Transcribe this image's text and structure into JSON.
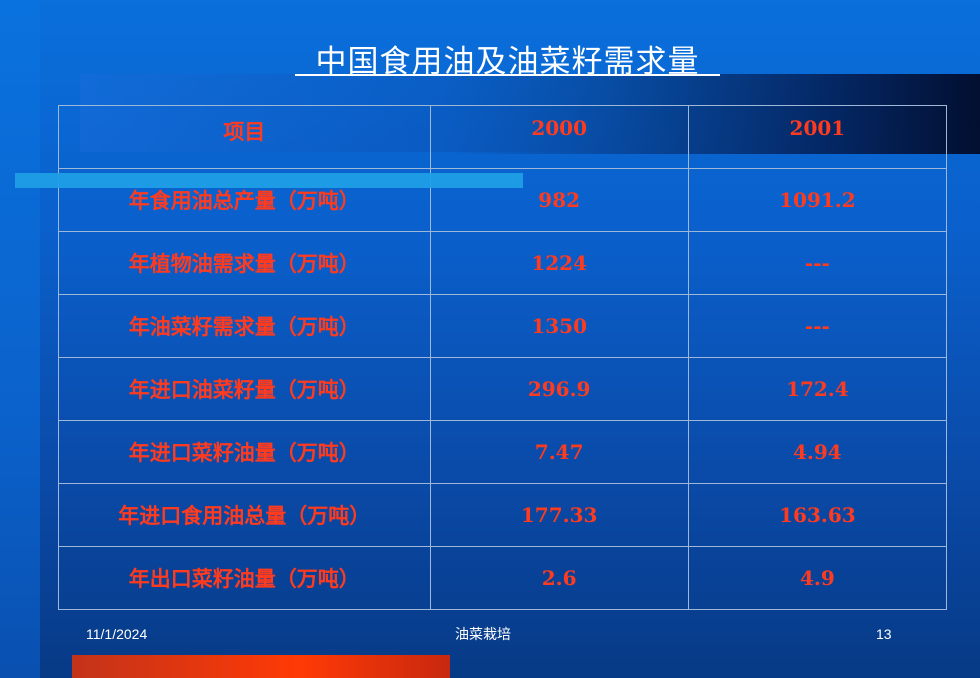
{
  "slide": {
    "title": "中国食用油及油菜籽需求量"
  },
  "table": {
    "headers": [
      "项目",
      "2000",
      "2001"
    ],
    "rows": [
      [
        "年食用油总产量（万吨）",
        "982",
        "1091.2"
      ],
      [
        "年植物油需求量（万吨）",
        "1224",
        "---"
      ],
      [
        "年油菜籽需求量（万吨）",
        "1350",
        "---"
      ],
      [
        "年进口油菜籽量（万吨）",
        "296.9",
        "172.4"
      ],
      [
        "年进口菜籽油量（万吨）",
        "7.47",
        "4.94"
      ],
      [
        "年进口食用油总量（万吨）",
        "177.33",
        "163.63"
      ],
      [
        "年出口菜籽油量（万吨）",
        "2.6",
        "4.9"
      ]
    ]
  },
  "footer": {
    "date": "11/1/2024",
    "center": "油菜栽培",
    "page": "13"
  },
  "colors": {
    "background": "#0a5fcb",
    "table_text": "#ff3b1f",
    "title_text": "#ffffff",
    "accent_bar": "#ff3a05",
    "cyan_bar": "#1f9fe6"
  }
}
